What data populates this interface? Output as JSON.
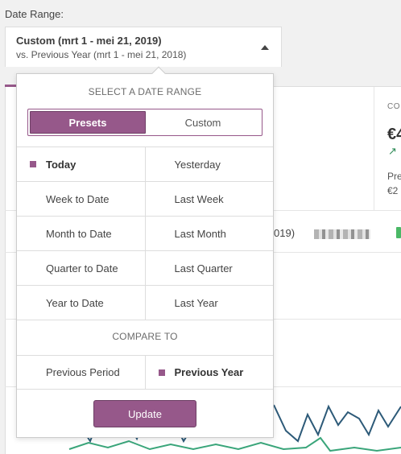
{
  "filter": {
    "label": "Date Range:",
    "primary": "Custom (mrt 1 - mei 21, 2019)",
    "secondary": "vs. Previous Year (mrt 1 - mei 21, 2018)"
  },
  "popover": {
    "select_title": "SELECT A DATE RANGE",
    "tabs": [
      {
        "label": "Presets",
        "active": true
      },
      {
        "label": "Custom",
        "active": false
      }
    ],
    "presets": [
      [
        "Today",
        "Yesterday"
      ],
      [
        "Week to Date",
        "Last Week"
      ],
      [
        "Month to Date",
        "Last Month"
      ],
      [
        "Quarter to Date",
        "Last Quarter"
      ],
      [
        "Year to Date",
        "Last Year"
      ]
    ],
    "selected_preset": "Today",
    "compare_title": "COMPARE TO",
    "compare": [
      "Previous Period",
      "Previous Year"
    ],
    "selected_compare": "Previous Year",
    "update_label": "Update"
  },
  "background": {
    "stat_label": "CO",
    "stat_value": "€4",
    "stat_arrow": "↗",
    "stat_prev_label": "Pre",
    "stat_prev_value": "€2",
    "table_year": "019)"
  },
  "colors": {
    "accent": "#96588a",
    "line_primary": "#2d5a78",
    "line_secondary": "#3aa57a"
  }
}
